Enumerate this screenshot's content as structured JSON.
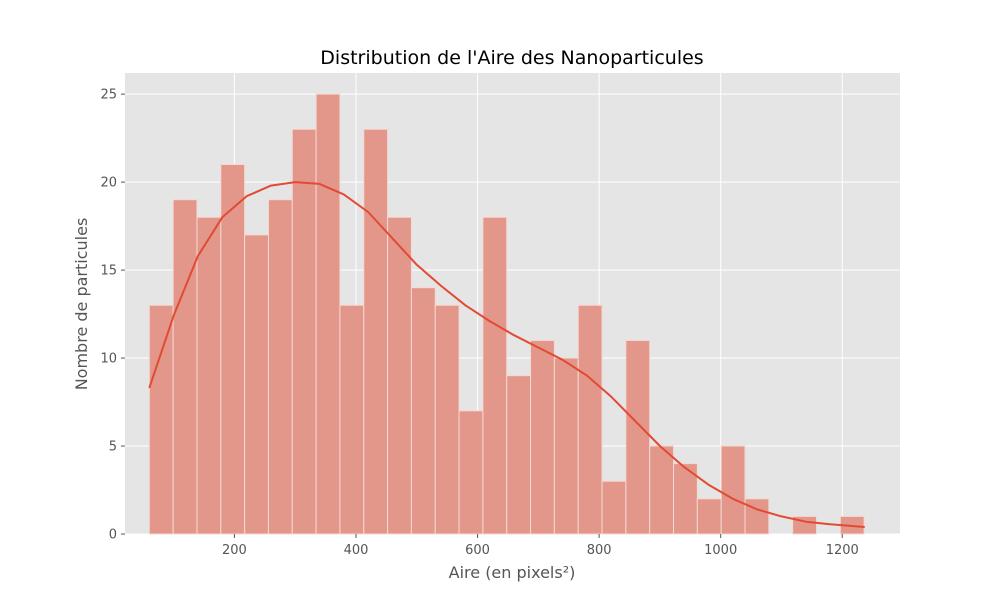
{
  "chart_data": {
    "type": "bar",
    "title": "Distribution de l'Aire des Nanoparticules",
    "xlabel": "Aire (en pixels²)",
    "ylabel": "Nombre de particules",
    "xlim": [
      20,
      1295
    ],
    "ylim": [
      0,
      26.2
    ],
    "xticks": [
      200,
      400,
      600,
      800,
      1000,
      1200
    ],
    "yticks": [
      0,
      5,
      10,
      15,
      20,
      25
    ],
    "grid": true,
    "legend": "none",
    "bins": {
      "start": 60,
      "width": 39.2,
      "counts": [
        13,
        19,
        18,
        21,
        17,
        19,
        23,
        25,
        13,
        23,
        18,
        14,
        13,
        7,
        18,
        9,
        11,
        10,
        13,
        3,
        11,
        5,
        4,
        2,
        5,
        2,
        0,
        1,
        0,
        1
      ]
    },
    "kde": {
      "x": [
        60,
        100,
        140,
        180,
        220,
        260,
        300,
        340,
        380,
        420,
        460,
        500,
        540,
        580,
        620,
        660,
        700,
        740,
        780,
        820,
        860,
        900,
        940,
        980,
        1020,
        1060,
        1100,
        1140,
        1180,
        1237
      ],
      "y": [
        8.3,
        12.4,
        15.8,
        18.0,
        19.2,
        19.8,
        20.0,
        19.9,
        19.3,
        18.3,
        16.8,
        15.3,
        14.1,
        13.0,
        12.1,
        11.3,
        10.6,
        9.9,
        9.0,
        7.8,
        6.4,
        5.0,
        3.8,
        2.8,
        2.0,
        1.4,
        1.0,
        0.7,
        0.55,
        0.4
      ]
    },
    "colors": {
      "background": "#e5e5e5",
      "grid": "#ffffff",
      "bar_fill": "#e3978a",
      "bar_edge": "#f4d8d2",
      "kde_line": "#e24a33",
      "tick": "#555555"
    }
  }
}
